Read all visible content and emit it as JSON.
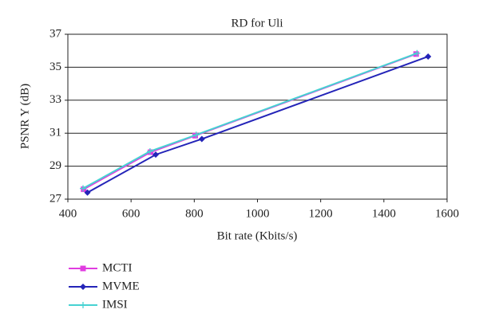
{
  "chart_data": {
    "type": "line",
    "title": "RD for Uli",
    "xlabel": "Bit rate (Kbits/s)",
    "ylabel": "PSNR Y (dB)",
    "xlim": [
      400,
      1600
    ],
    "xticks": [
      400,
      600,
      800,
      1000,
      1200,
      1400,
      1600
    ],
    "ylim": [
      27,
      37
    ],
    "yticks": [
      27,
      29,
      31,
      33,
      35,
      37
    ],
    "grid": true,
    "series": [
      {
        "name": "MCTI",
        "color": "#e03ce0",
        "marker": "square",
        "x": [
          450,
          662,
          803,
          1502
        ],
        "values": [
          27.6,
          29.85,
          30.85,
          35.8
        ]
      },
      {
        "name": "MVME",
        "color": "#2424b8",
        "marker": "diamond",
        "x": [
          462,
          678,
          824,
          1540
        ],
        "values": [
          27.4,
          29.7,
          30.65,
          35.65
        ]
      },
      {
        "name": "IMSI",
        "color": "#46d2d2",
        "marker": "plus",
        "x": [
          448,
          660,
          806,
          1505
        ],
        "values": [
          27.65,
          29.9,
          30.9,
          35.85
        ]
      }
    ]
  }
}
